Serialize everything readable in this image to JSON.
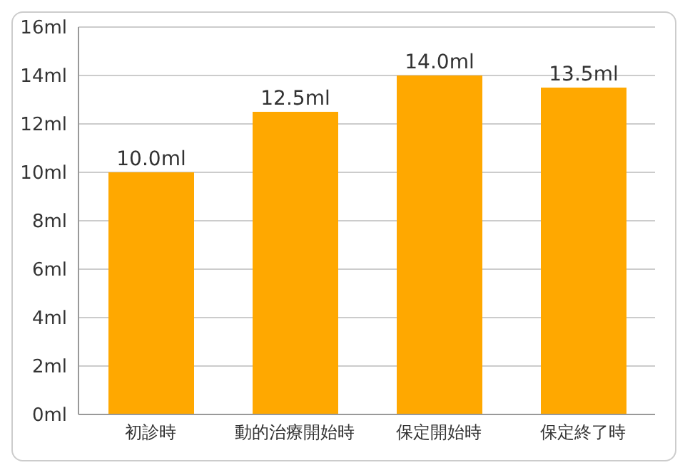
{
  "chart_data": {
    "type": "bar",
    "categories": [
      "初診時",
      "動的治療開始時",
      "保定開始時",
      "保定終了時"
    ],
    "values": [
      10.0,
      12.5,
      14.0,
      13.5
    ],
    "color": "#ffa800",
    "value_labels": [
      "10.0ml",
      "12.5ml",
      "14.0ml",
      "13.5ml"
    ],
    "ylim": [
      0,
      16
    ],
    "yticks": [
      {
        "value": 0,
        "label": "0ml"
      },
      {
        "value": 2,
        "label": "2ml"
      },
      {
        "value": 4,
        "label": "4ml"
      },
      {
        "value": 6,
        "label": "6ml"
      },
      {
        "value": 8,
        "label": "8ml"
      },
      {
        "value": 10,
        "label": "10ml"
      },
      {
        "value": 12,
        "label": "12ml"
      },
      {
        "value": 14,
        "label": "14ml"
      },
      {
        "value": 16,
        "label": "16ml"
      }
    ],
    "grid": "y"
  }
}
